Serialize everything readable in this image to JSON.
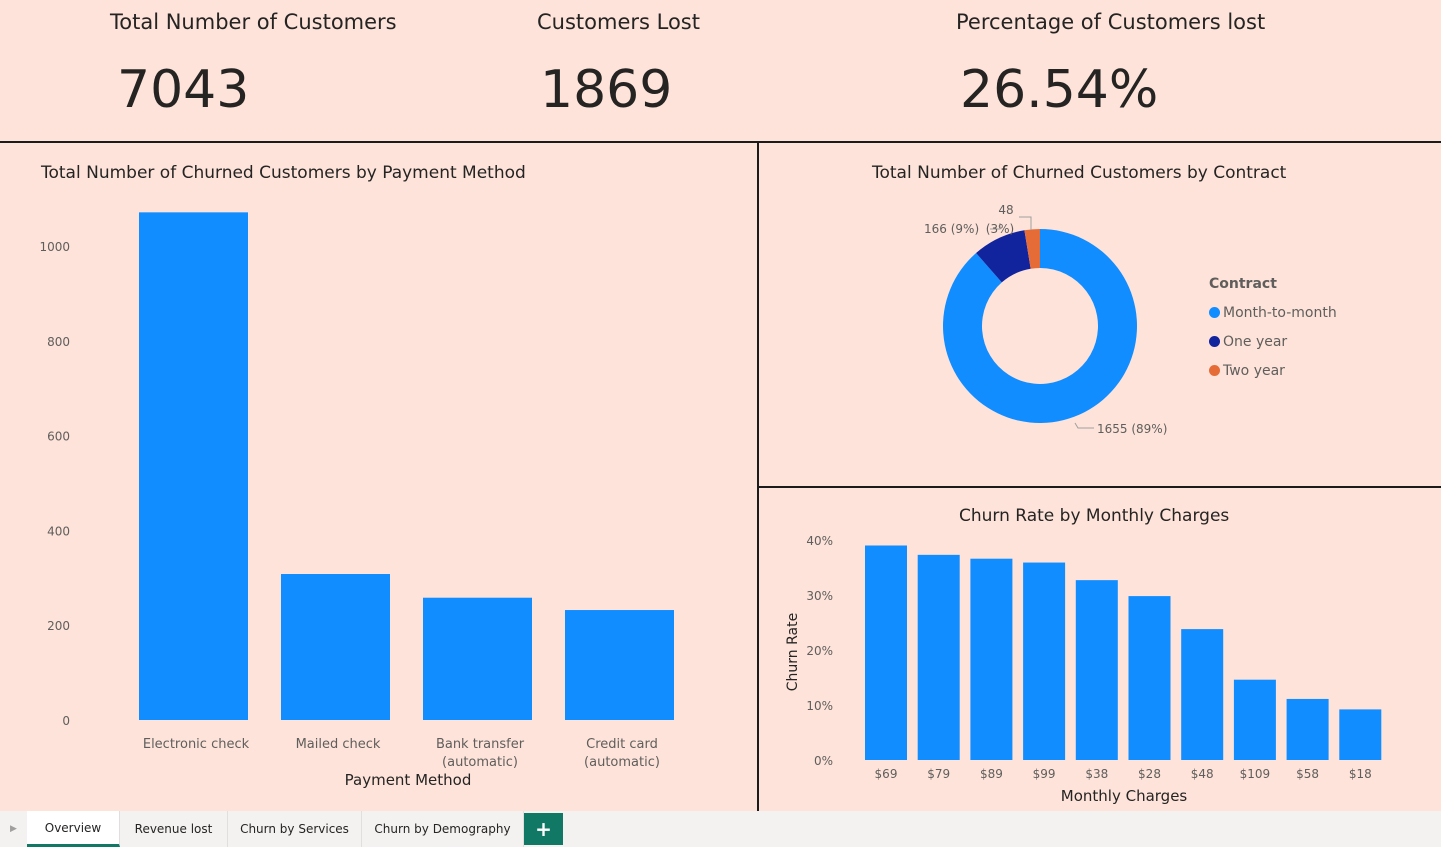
{
  "kpis": [
    {
      "title": "Total Number of Customers",
      "value": "7043"
    },
    {
      "title": "Customers Lost",
      "value": "1869"
    },
    {
      "title": "Percentage of Customers lost",
      "value": "26.54%"
    }
  ],
  "colors": {
    "background": "#fde3d9",
    "bar": "#118dff",
    "month_to_month": "#118dff",
    "one_year": "#12239e",
    "two_year": "#e66c37",
    "tab_accent": "#117865"
  },
  "tabs": [
    {
      "label": "Overview",
      "active": true
    },
    {
      "label": "Revenue lost",
      "active": false
    },
    {
      "label": "Churn by Services",
      "active": false
    },
    {
      "label": "Churn by Demography",
      "active": false
    }
  ],
  "add_tab_icon": "plus-icon",
  "chart_data": [
    {
      "type": "bar",
      "title": "Total Number of Churned Customers by Payment Method",
      "xlabel": "Payment Method",
      "ylabel": "",
      "categories": [
        [
          "Electronic check"
        ],
        [
          "Mailed check"
        ],
        [
          "Bank transfer",
          "(automatic)"
        ],
        [
          "Credit card",
          "(automatic)"
        ]
      ],
      "values": [
        1071,
        308,
        258,
        232
      ],
      "yticks": [
        "0",
        "200",
        "400",
        "600",
        "800",
        "1000"
      ],
      "ylim": [
        0,
        1100
      ],
      "grid": false
    },
    {
      "type": "pie",
      "title": "Total Number of Churned Customers by Contract",
      "legend_title": "Contract",
      "legend_position": "right",
      "slices": [
        {
          "label": "Month-to-month",
          "value": 1655,
          "data_label": "1655 (89%)"
        },
        {
          "label": "One year",
          "value": 166,
          "data_label": "166 (9%)"
        },
        {
          "label": "Two year",
          "value": 48,
          "data_label_line1": "48",
          "data_label_line2": "(3%)"
        }
      ]
    },
    {
      "type": "bar",
      "title": "Churn Rate by Monthly Charges",
      "xlabel": "Monthly Charges",
      "ylabel": "Churn Rate",
      "categories": [
        "$69",
        "$79",
        "$89",
        "$99",
        "$38",
        "$28",
        "$48",
        "$109",
        "$58",
        "$18"
      ],
      "values": [
        39,
        37.3,
        36.6,
        35.9,
        32.7,
        29.8,
        23.8,
        14.6,
        11.1,
        9.2
      ],
      "yticks": [
        "0%",
        "10%",
        "20%",
        "30%",
        "40%"
      ],
      "ylim": [
        0,
        40
      ],
      "grid": false
    }
  ]
}
